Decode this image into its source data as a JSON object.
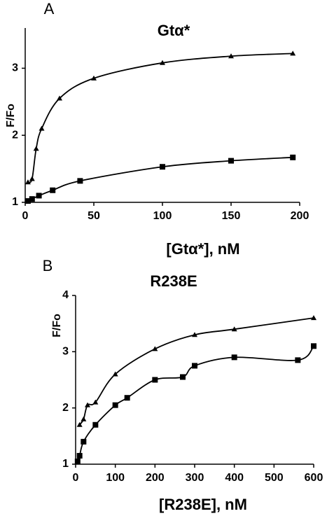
{
  "chart_data": [
    {
      "type": "line",
      "panel": "A",
      "title": "Gtα*",
      "xlabel": "[Gtα*], nM",
      "ylabel": "F/Fo",
      "xlim": [
        0,
        200
      ],
      "xticks": [
        0,
        50,
        100,
        150,
        200
      ],
      "ylim": [
        1,
        3.6
      ],
      "yticks": [
        1,
        2,
        3
      ],
      "series": [
        {
          "color": "#000000",
          "marker": "triangle",
          "x": [
            2,
            5,
            8,
            12,
            25,
            50,
            100,
            150,
            195
          ],
          "values": [
            1.3,
            1.35,
            1.8,
            2.1,
            2.55,
            2.85,
            3.08,
            3.18,
            3.22
          ]
        },
        {
          "color": "#000000",
          "marker": "square",
          "x": [
            2,
            5,
            10,
            20,
            40,
            100,
            150,
            195
          ],
          "values": [
            1.02,
            1.05,
            1.1,
            1.18,
            1.32,
            1.53,
            1.62,
            1.67
          ]
        }
      ]
    },
    {
      "type": "line",
      "panel": "B",
      "title": "R238E",
      "xlabel": "[R238E], nM",
      "ylabel": "F/Fo",
      "xlim": [
        0,
        600
      ],
      "xticks": [
        0,
        100,
        200,
        300,
        400,
        500,
        600
      ],
      "ylim": [
        1,
        4
      ],
      "yticks": [
        1,
        2,
        3,
        4
      ],
      "series": [
        {
          "color": "#000000",
          "marker": "triangle",
          "x": [
            10,
            20,
            30,
            50,
            100,
            200,
            300,
            400,
            600
          ],
          "values": [
            1.7,
            1.8,
            2.05,
            2.1,
            2.6,
            3.05,
            3.3,
            3.4,
            3.6
          ]
        },
        {
          "color": "#000000",
          "marker": "square",
          "x": [
            5,
            10,
            20,
            50,
            100,
            130,
            200,
            270,
            300,
            400,
            560,
            600
          ],
          "values": [
            1.05,
            1.15,
            1.4,
            1.7,
            2.05,
            2.18,
            2.5,
            2.55,
            2.75,
            2.9,
            2.85,
            3.1
          ]
        }
      ]
    }
  ]
}
